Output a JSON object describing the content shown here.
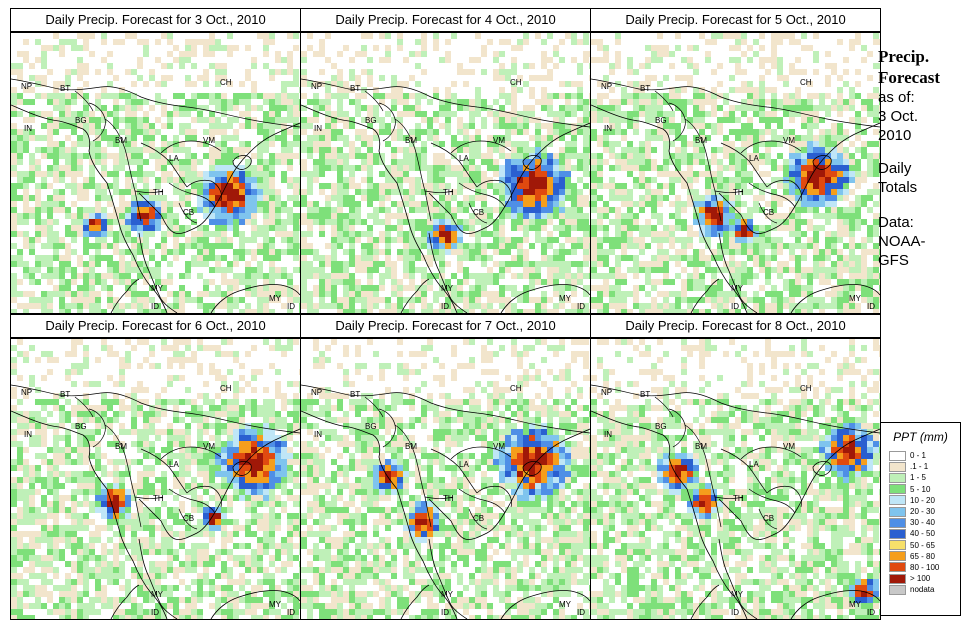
{
  "panels": [
    {
      "title": "Daily Precip. Forecast for  3 Oct., 2010",
      "date": "3 Oct."
    },
    {
      "title": "Daily Precip. Forecast for  4 Oct., 2010",
      "date": "4 Oct."
    },
    {
      "title": "Daily Precip. Forecast for  5 Oct., 2010",
      "date": "5 Oct."
    },
    {
      "title": "Daily Precip. Forecast for  6 Oct., 2010",
      "date": "6 Oct."
    },
    {
      "title": "Daily Precip. Forecast for  7 Oct., 2010",
      "date": "7 Oct."
    },
    {
      "title": "Daily Precip. Forecast for  8 Oct., 2010",
      "date": "8 Oct."
    }
  ],
  "map_labels": [
    "NP",
    "BT",
    "BG",
    "IN",
    "BM",
    "CH",
    "VM",
    "LA",
    "TH",
    "CB",
    "MY",
    "MY",
    "ID",
    "ID"
  ],
  "sidebar": {
    "title_line1": "Precip.",
    "title_line2": "Forecast",
    "asof": "as of:",
    "date_line1": "3 Oct.",
    "date_line2": "2010",
    "totals_line1": "Daily",
    "totals_line2": "Totals",
    "data_line1": "Data:",
    "data_line2": "NOAA-",
    "data_line3": "GFS"
  },
  "legend": {
    "title": "PPT (mm)",
    "entries": [
      {
        "label": "0 - 1",
        "color": "#ffffff"
      },
      {
        "label": ".1 - 1",
        "color": "#f2e5cc"
      },
      {
        "label": "1 - 5",
        "color": "#bff0b8"
      },
      {
        "label": "5 - 10",
        "color": "#7ee07a"
      },
      {
        "label": "10 - 20",
        "color": "#bfe6f7"
      },
      {
        "label": "20 - 30",
        "color": "#7fc4ee"
      },
      {
        "label": "30 - 40",
        "color": "#4f8fe6"
      },
      {
        "label": "40 - 50",
        "color": "#2a5fd0"
      },
      {
        "label": "50 - 65",
        "color": "#f7e06a"
      },
      {
        "label": "65 - 80",
        "color": "#f59e1c"
      },
      {
        "label": "80 - 100",
        "color": "#e04a10"
      },
      {
        "label": "> 100",
        "color": "#a01808"
      },
      {
        "label": "nodata",
        "color": "#c8c8c8"
      }
    ]
  }
}
